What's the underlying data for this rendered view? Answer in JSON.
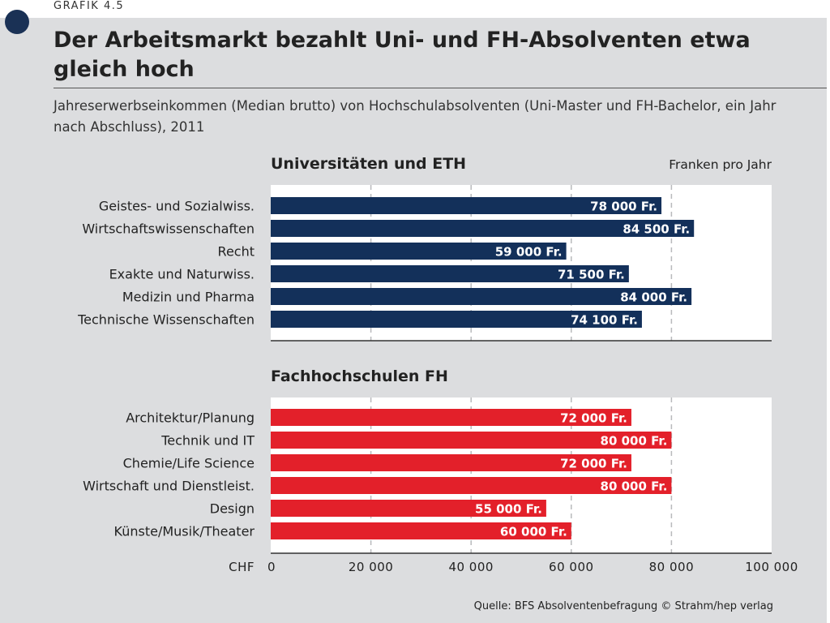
{
  "header": {
    "grafik_label": "GRAFIK 4.5",
    "title": "Der Arbeitsmarkt bezahlt Uni- und FH-Absolventen etwa gleich hoch",
    "subtitle": "Jahreserwerbseinkommen (Median brutto) von Hochschulabsolventen (Uni-Master und FH-Bachelor, ein Jahr nach Abschluss), 2011"
  },
  "footer": {
    "source": "Quelle: BFS Absolventenbefragung  © Strahm/hep verlag"
  },
  "chart_data": {
    "type": "bar",
    "orientation": "horizontal",
    "unit_label": "Franken pro Jahr",
    "axis_label": "CHF",
    "xlim": [
      0,
      100000
    ],
    "ticks": [
      0,
      20000,
      40000,
      60000,
      80000,
      100000
    ],
    "tick_labels": [
      "0",
      "20 000",
      "40 000",
      "60 000",
      "80 000",
      "100 000"
    ],
    "grid": "vertical-dashed",
    "panels": [
      {
        "title": "Universitäten und ETH",
        "color": "#13305a",
        "categories": [
          "Geistes- und Sozialwiss.",
          "Wirtschaftswissenschaften",
          "Recht",
          "Exakte und Naturwiss.",
          "Medizin und Pharma",
          "Technische Wissenschaften"
        ],
        "values": [
          78000,
          84500,
          59000,
          71500,
          84000,
          74100
        ],
        "value_labels": [
          "78 000 Fr.",
          "84 500 Fr.",
          "59 000 Fr.",
          "71 500 Fr.",
          "84 000 Fr.",
          "74 100 Fr."
        ]
      },
      {
        "title": "Fachhochschulen FH",
        "color": "#e3202a",
        "categories": [
          "Architektur/Planung",
          "Technik und IT",
          "Chemie/Life Science",
          "Wirtschaft und Dienstleist.",
          "Design",
          "Künste/Musik/Theater"
        ],
        "values": [
          72000,
          80000,
          72000,
          80000,
          55000,
          60000
        ],
        "value_labels": [
          "72 000 Fr.",
          "80 000 Fr.",
          "72 000 Fr.",
          "80 000 Fr.",
          "55 000 Fr.",
          "60 000 Fr."
        ]
      }
    ]
  }
}
